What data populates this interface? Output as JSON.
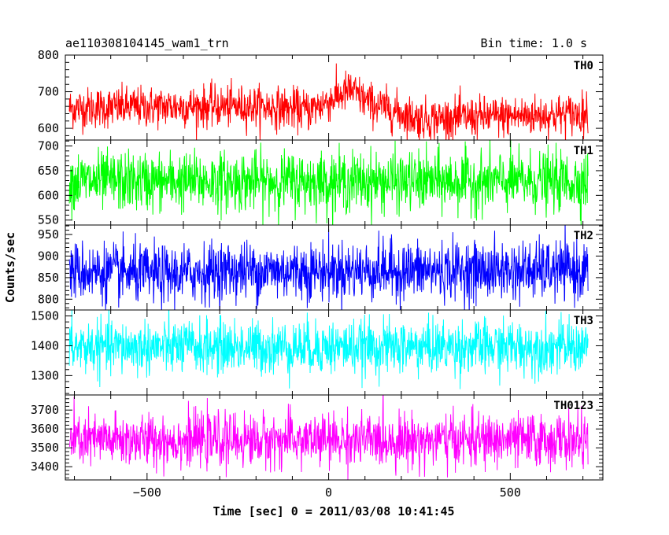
{
  "chart_data": {
    "type": "line",
    "title": "ae110308104145_wam1_trn",
    "bin_time_label": "Bin time: 1.0 s",
    "xlabel": "Time [sec] 0 = 2011/03/08 10:41:45",
    "ylabel": "Counts/sec",
    "xlim": [
      -725,
      755
    ],
    "x_range": [
      -714,
      714
    ],
    "x_step": 1,
    "x_ticks": [
      -500,
      0,
      500
    ],
    "grid": false,
    "panels": [
      {
        "name": "TH0",
        "color": "#ff0000",
        "ylim": [
          568,
          800
        ],
        "y_ticks": [
          600,
          700,
          800
        ],
        "baseline": [
          [
            -714,
            655
          ],
          [
            -400,
            660
          ],
          [
            -200,
            660
          ],
          [
            -50,
            650
          ],
          [
            60,
            705
          ],
          [
            110,
            670
          ],
          [
            250,
            625
          ],
          [
            714,
            640
          ]
        ],
        "noise": 28
      },
      {
        "name": "TH1",
        "color": "#00ff00",
        "ylim": [
          540,
          712
        ],
        "y_ticks": [
          550,
          600,
          650,
          700
        ],
        "baseline": [
          [
            -714,
            628
          ],
          [
            714,
            628
          ]
        ],
        "noise": 30
      },
      {
        "name": "TH2",
        "color": "#0000ff",
        "ylim": [
          775,
          972
        ],
        "y_ticks": [
          800,
          850,
          900,
          950
        ],
        "baseline": [
          [
            -714,
            866
          ],
          [
            -450,
            855
          ],
          [
            -300,
            866
          ],
          [
            714,
            866
          ]
        ],
        "noise": 34
      },
      {
        "name": "TH3",
        "color": "#00ffff",
        "ylim": [
          1235,
          1520
        ],
        "y_ticks": [
          1300,
          1400,
          1500
        ],
        "baseline": [
          [
            -714,
            1395
          ],
          [
            714,
            1395
          ]
        ],
        "noise": 45
      },
      {
        "name": "TH0123",
        "color": "#ff00ff",
        "ylim": [
          3330,
          3780
        ],
        "y_ticks": [
          3400,
          3500,
          3600,
          3700
        ],
        "baseline": [
          [
            -714,
            3540
          ],
          [
            714,
            3540
          ]
        ],
        "noise": 70
      }
    ]
  }
}
